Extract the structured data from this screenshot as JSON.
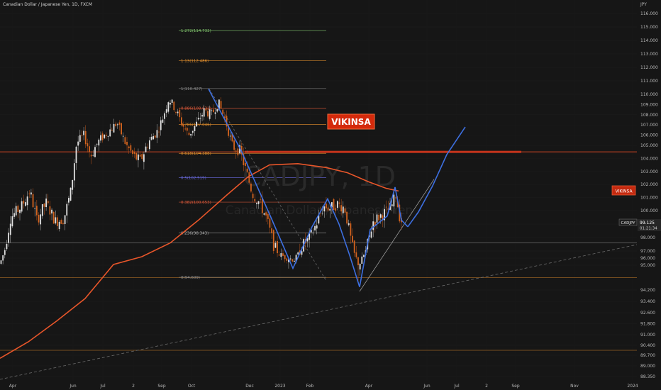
{
  "header": {
    "symbol_line": "Canadian Dollar / Japanese Yen, 1D, FXCM"
  },
  "chart_data": {
    "type": "candlestick",
    "symbol": "CADJPY",
    "timeframe": "1D",
    "watermark": {
      "symbol": "CADJPY, 1D",
      "name": "Canadian Dollar / Japanese Yen"
    },
    "y_axis": {
      "currency": "JPY",
      "range": [
        88.0,
        117.0
      ],
      "ticks": [
        "116.000",
        "115.000",
        "114.000",
        "113.000",
        "112.000",
        "111.000",
        "110.000",
        "109.000",
        "108.000",
        "107.000",
        "106.000",
        "105.000",
        "104.000",
        "103.000",
        "102.000",
        "101.000",
        "100.000",
        "99.000",
        "98.000",
        "97.000",
        "96.000",
        "95.000",
        "94.200",
        "93.400",
        "92.600",
        "91.800",
        "91.000",
        "90.400",
        "89.700",
        "89.000",
        "88.350"
      ]
    },
    "x_axis": {
      "ticks": [
        "Apr",
        "Jun",
        "Jul",
        "2",
        "Sep",
        "Oct",
        "Dec",
        "2023",
        "Feb",
        "Apr",
        "Jun",
        "Jul",
        "2",
        "Sep",
        "Nov",
        "2024"
      ]
    },
    "price": {
      "label": "CADJPY",
      "last": "99.125",
      "countdown": "01:21:34"
    },
    "fib_levels": [
      {
        "label": "1.272(114.732)",
        "value": 114.73,
        "color": "#7ec26a"
      },
      {
        "label": "1.13(112.486)",
        "value": 112.49,
        "color": "#e8922e"
      },
      {
        "label": "1(110.427)",
        "value": 110.43,
        "color": "#8c8c8c"
      },
      {
        "label": "0.886(108.631)",
        "value": 108.63,
        "color": "#e05a3a"
      },
      {
        "label": "0.786(107.046)",
        "value": 107.05,
        "color": "#e8922e"
      },
      {
        "label": "0.618(104.388)",
        "value": 104.39,
        "color": "#e8922e"
      },
      {
        "label": "0.5(102.519)",
        "value": 102.52,
        "color": "#6b6be0"
      },
      {
        "label": "0.382(100.653)",
        "value": 100.65,
        "color": "#e05a3a"
      },
      {
        "label": "0.236(98.343)",
        "value": 98.34,
        "color": "#b0b0b0"
      },
      {
        "label": "0(94.609)",
        "value": 94.61,
        "color": "#8c8c8c"
      }
    ],
    "horizontal_levels": [
      {
        "value": 104.5,
        "color": "#cc4422",
        "style": "thick"
      },
      {
        "value": 94.6,
        "color": "#c07a2a",
        "style": "thin"
      },
      {
        "value": 90.05,
        "color": "#c07a2a",
        "style": "thin"
      },
      {
        "value": 97.6,
        "color": "#888888",
        "style": "thin"
      }
    ],
    "moving_average_color": "#e8562a",
    "projection_color": "#3d6fe0",
    "annotations": [
      {
        "text": "VIKINSA",
        "where": "chart-center-right"
      },
      {
        "text": "VIKINSA",
        "where": "price-axis-marker"
      }
    ]
  }
}
